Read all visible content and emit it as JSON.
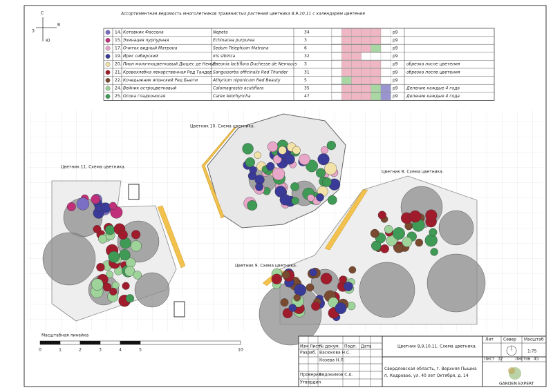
{
  "title": "Ассортиментная ведомость многолетников травянистых растений цветника 8,9,10,11 с календарем цветения",
  "compass": {
    "north": "С",
    "east": "В",
    "west": "З",
    "south": "Ю"
  },
  "plants": [
    {
      "no": "14.",
      "ru": "Котовник Фассена",
      "lat": "Nepeta",
      "qty": "34",
      "code": "р9"
    },
    {
      "no": "15.",
      "ru": "Эхинацея пурпурная",
      "lat": "Echinacea purpurea",
      "qty": "3",
      "code": "р9"
    },
    {
      "no": "17.",
      "ru": "Очиток видный Матрона",
      "lat": "Sedum Telephium Matrona",
      "qty": "6",
      "code": "р9"
    },
    {
      "no": "19.",
      "ru": "Ирис сибирский",
      "lat": "Iris sibirica",
      "qty": "32",
      "code": "р9"
    },
    {
      "no": "20.",
      "ru": "Пион молочноцветковый Дюшес де Немур",
      "lat": "Paeonia lactiflora Duchesse de Nemours",
      "qty": "3",
      "code": "р9",
      "note": "обрезка после цветения"
    },
    {
      "no": "21.",
      "ru": "Кровохлебка лекарственная Ред Тандер",
      "lat": "Sanguisorba officinalis Red Thunder",
      "qty": "31",
      "code": "р9",
      "note": "обрезка после цветения"
    },
    {
      "no": "22.",
      "ru": "Кочедыжник японский Ред Бьюти",
      "lat": "Athyrium niponicum Red Beauty",
      "qty": "5",
      "code": "р9"
    },
    {
      "no": "24.",
      "ru": "Вейник остроцветковый",
      "lat": "Calamagrostis acutiflora",
      "qty": "35",
      "code": "р9",
      "note": "Деление каждые 4 года"
    },
    {
      "no": "25.",
      "ru": "Осока гладконосая",
      "lat": "Carex leiorhyncha",
      "qty": "47",
      "code": "р9",
      "note": "Деление каждые 4 года"
    }
  ],
  "beds": {
    "bed10": "Цветник 10. Схема цветника.",
    "bed11": "Цветник 11. Схема цветника.",
    "bed8": "Цветник 8. Схема цветника.",
    "bed9": "Цветник 9. Схема цветника."
  },
  "scale": {
    "title": "Масштабная линейка",
    "ticks": [
      "0",
      "1",
      "2",
      "3",
      "4",
      "5",
      "10"
    ]
  },
  "stamp": {
    "headers": [
      "Изм",
      "Лист",
      "№ докум.",
      "Подп.",
      "Дата"
    ],
    "developed": "Разраб.",
    "author1": "Васюкова Н.С.",
    "author2": "Козева Н.Л.",
    "checked": "Проверил",
    "checker": "Евдокимов С.А.",
    "approved": "Утвердил",
    "sheet_title": "Цветник 8,9,10,11. Схема цветника.",
    "address": "Свердловская область, г. Верхняя Пышма п. Кедровое, ул. 40 лет Октября, д. 14",
    "lit": "Лит",
    "north": "Север",
    "scale_label": "Масштаб",
    "scale_value": "1:75",
    "sheet": "Лист",
    "sheet_no": "32",
    "sheets": "Листов",
    "sheets_no": "45",
    "logo": "GARDEN EXPERT"
  }
}
